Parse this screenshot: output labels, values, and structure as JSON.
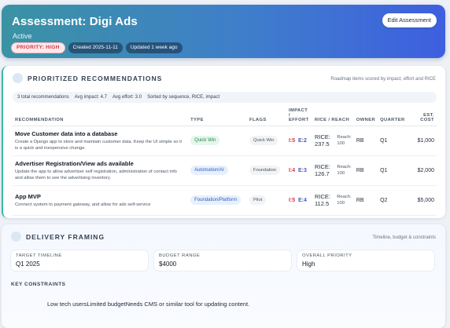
{
  "header": {
    "title": "Assessment: Digi Ads",
    "status": "Active",
    "priority": "PRIORITY: HIGH",
    "created": "Created 2025-11-11",
    "updated": "Updated 1 week ago",
    "edit_label": "Edit Assessment"
  },
  "recommendations": {
    "title": "PRIORITIZED RECOMMENDATIONS",
    "note": "Roadmap items scored by impact, effort and RICE",
    "summary": {
      "total": "3 total recommendations",
      "avg_impact": "Avg impact: 4.7",
      "avg_effort": "Avg effort: 3.0",
      "sorted": "Sorted by sequence, RICE, impact"
    },
    "columns": [
      "RECOMMENDATION",
      "TYPE",
      "FLAGS",
      "IMPACT / EFFORT",
      "RICE / REACH",
      "OWNER",
      "QUARTER",
      "EST. COST"
    ],
    "rows": [
      {
        "title": "Move Customer data into a database",
        "desc": "Create a Django app to store and maintain customer data. Keep the UI simple so it is a quick and inexpensive change.",
        "type": "Quick Win",
        "flag": "Quick Win",
        "impact": "I:5",
        "effort": "E:2",
        "rice": "RICE: 237.5",
        "reach": "Reach: 100",
        "owner": "RB",
        "quarter": "Q1",
        "cost": "$1,000"
      },
      {
        "title": "Advertiser Registration/View ads available",
        "desc": "Update the app to allow advertiser self registration, administration of contact info and allow them to see the advertising inventory.",
        "type": "Automation/AI",
        "flag": "Foundation",
        "impact": "I:4",
        "effort": "E:3",
        "rice": "RICE: 126.7",
        "reach": "Reach: 100",
        "owner": "RB",
        "quarter": "Q1",
        "cost": "$2,000"
      },
      {
        "title": "App MVP",
        "desc": "Connect system to payment gateway, and allow for ads self-service",
        "type": "Foundation/Platform",
        "flag": "Pilot",
        "impact": "I:5",
        "effort": "E:4",
        "rice": "RICE: 112.5",
        "reach": "Reach: 100",
        "owner": "RB",
        "quarter": "Q2",
        "cost": "$5,000"
      }
    ]
  },
  "delivery": {
    "title": "DELIVERY FRAMING",
    "note": "Timeline, budget & constraints",
    "target_label": "TARGET TIMELINE",
    "target_value": "Q1 2025",
    "budget_label": "BUDGET RANGE",
    "budget_value": "$4000",
    "priority_label": "OVERALL PRIORITY",
    "priority_value": "High",
    "constraints_label": "KEY CONSTRAINTS",
    "constraints_text": "Low tech usersLimited budgetNeeds CMS or similar tool for updating content."
  }
}
